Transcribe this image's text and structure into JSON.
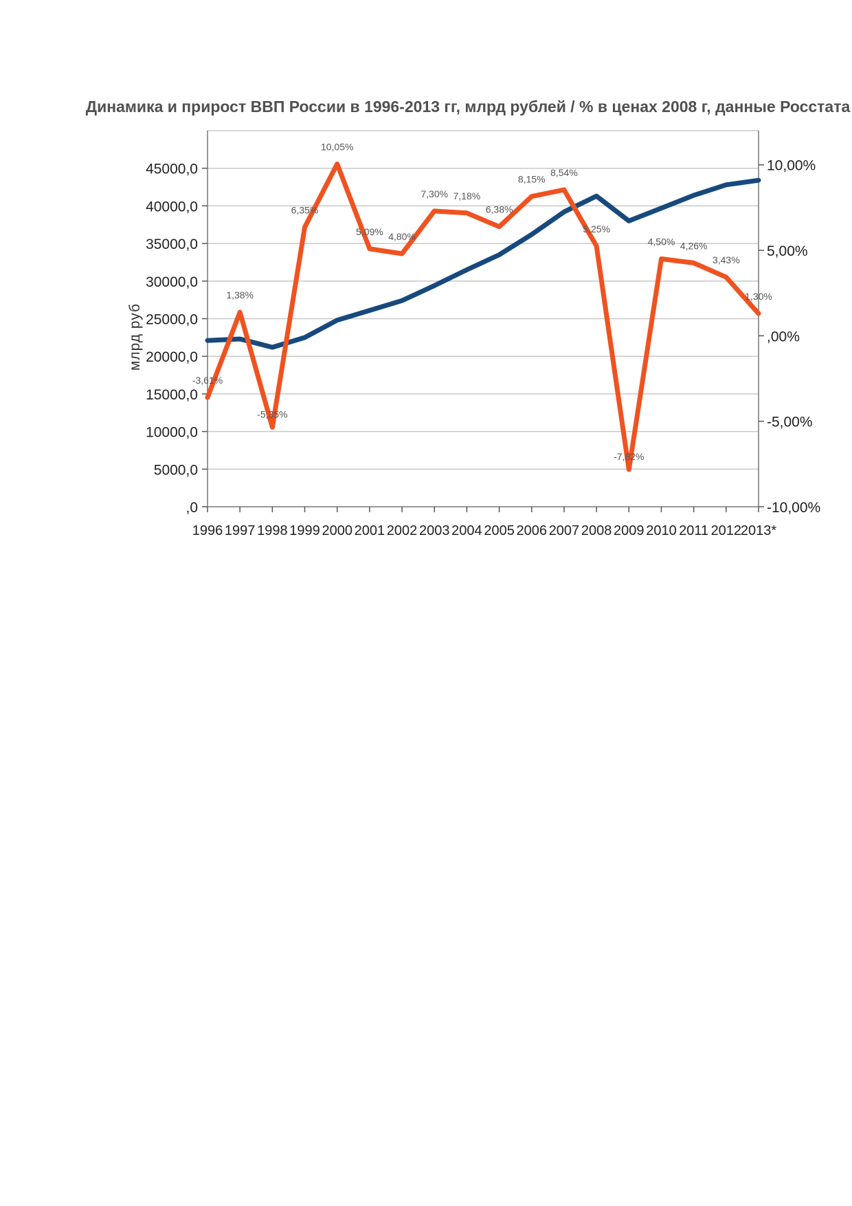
{
  "chart_data": {
    "type": "line",
    "title": "Динамика и прирост ВВП России в 1996-2013 гг, млрд рублей / % в ценах 2008 г, данные Росстата",
    "ylabel": "млрд руб",
    "categories": [
      "1996",
      "1997",
      "1998",
      "1999",
      "2000",
      "2001",
      "2002",
      "2003",
      "2004",
      "2005",
      "2006",
      "2007",
      "2008",
      "2009",
      "2010",
      "2011",
      "2012",
      "2013*"
    ],
    "ylim": [
      0,
      50000
    ],
    "y_ticks": [
      "45000,0",
      "40000,0",
      "35000,0",
      "30000,0",
      "25000,0",
      "20000,0",
      "15000,0",
      "10000,0",
      "5000,0",
      ",0"
    ],
    "y_tick_values": [
      45000,
      40000,
      35000,
      30000,
      25000,
      20000,
      15000,
      10000,
      5000,
      0
    ],
    "y2lim": [
      -10,
      12
    ],
    "y2_ticks": [
      "10,00%",
      "5,00%",
      ",00%",
      "-5,00%",
      "-10,00%"
    ],
    "y2_tick_values": [
      10,
      5,
      0,
      -5,
      -10
    ],
    "grid": true,
    "series": [
      {
        "color": "#17497d",
        "axis": "left",
        "values": [
          22100,
          22300,
          21200,
          22500,
          24800,
          26100,
          27400,
          29400,
          31500,
          33500,
          36200,
          39200,
          41300,
          38000,
          39700,
          41400,
          42800,
          43400
        ]
      },
      {
        "color": "#f05220",
        "axis": "right",
        "values": [
          -3.61,
          1.38,
          -5.35,
          6.35,
          10.05,
          5.09,
          4.8,
          7.3,
          7.18,
          6.38,
          8.15,
          8.54,
          5.25,
          -7.82,
          4.5,
          4.26,
          3.43,
          1.3
        ],
        "labels": [
          "-3,61%",
          "1,38%",
          "-5,35%",
          "6,35%",
          "10,05%",
          "5,09%",
          "4,80%",
          "7,30%",
          "7,18%",
          "6,38%",
          "8,15%",
          "8,54%",
          "5,25%",
          "-7,82%",
          "4,50%",
          "4,26%",
          "3,43%",
          "1,30%"
        ]
      }
    ]
  }
}
